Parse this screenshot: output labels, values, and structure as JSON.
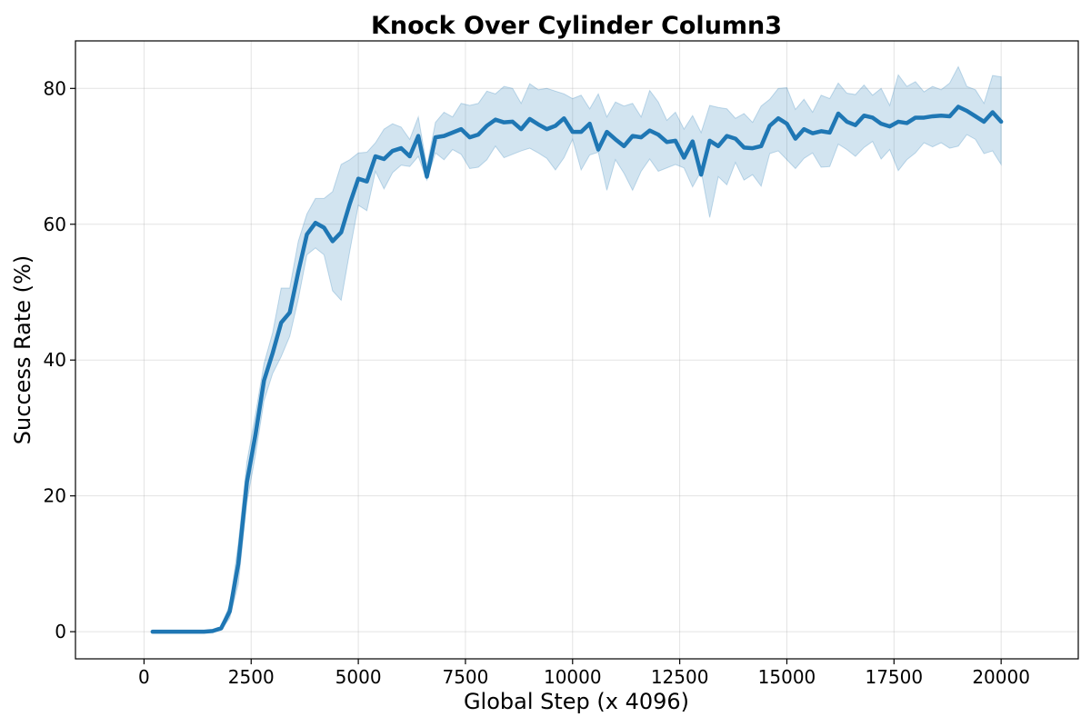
{
  "chart_data": {
    "type": "line",
    "title": "Knock Over Cylinder Column3",
    "xlabel": "Global Step (x 4096)",
    "ylabel": "Success Rate (%)",
    "xlim": [
      -1600,
      21800
    ],
    "ylim": [
      -4,
      87
    ],
    "xticks": [
      0,
      2500,
      5000,
      7500,
      10000,
      12500,
      15000,
      17500,
      20000
    ],
    "yticks": [
      0,
      20,
      40,
      60,
      80
    ],
    "grid": true,
    "colors": {
      "line": "#1f77b4",
      "band": "#1f77b4"
    },
    "series": [
      {
        "x": [
          200,
          400,
          600,
          800,
          1000,
          1200,
          1400,
          1600,
          1800,
          2000,
          2200,
          2400,
          2600,
          2800,
          3000,
          3200,
          3400,
          3600,
          3800,
          4000,
          4200,
          4400,
          4600,
          4800,
          5000,
          5200,
          5400,
          5600,
          5800,
          6000,
          6200,
          6400,
          6600,
          6800,
          7000,
          7200,
          7400,
          7600,
          7800,
          8000,
          8200,
          8400,
          8600,
          8800,
          9000,
          9200,
          9400,
          9600,
          9800,
          10000,
          10200,
          10400,
          10600,
          10800,
          11000,
          11200,
          11400,
          11600,
          11800,
          12000,
          12200,
          12400,
          12600,
          12800,
          13000,
          13200,
          13400,
          13600,
          13800,
          14000,
          14200,
          14400,
          14600,
          14800,
          15000,
          15200,
          15400,
          15600,
          15800,
          16000,
          16200,
          16400,
          16600,
          16800,
          17000,
          17200,
          17400,
          17600,
          17800,
          18000,
          18200,
          18400,
          18600,
          18800,
          19000,
          19200,
          19400,
          19600,
          19800,
          20000
        ],
        "y": [
          0,
          0,
          0,
          0,
          0,
          0,
          0,
          0.1,
          0.5,
          3,
          10,
          22,
          29,
          37,
          41,
          45.5,
          47,
          53,
          58.5,
          60.2,
          59.5,
          57.5,
          58.8,
          63,
          66.7,
          66.3,
          70,
          69.6,
          70.8,
          71.2,
          70,
          73,
          67,
          72.8,
          73,
          73.5,
          74,
          72.8,
          73.2,
          74.5,
          75.4,
          75,
          75.1,
          74,
          75.5,
          74.7,
          74,
          74.5,
          75.6,
          73.6,
          73.6,
          74.8,
          71,
          73.6,
          72.5,
          71.5,
          73,
          72.8,
          73.8,
          73.2,
          72.1,
          72.3,
          69.8,
          72.2,
          67.3,
          72.3,
          71.5,
          73,
          72.6,
          71.3,
          71.2,
          71.5,
          74.5,
          75.6,
          74.8,
          72.6,
          74,
          73.4,
          73.7,
          73.5,
          76.3,
          75.1,
          74.6,
          76,
          75.7,
          74.8,
          74.4,
          75.1,
          74.9,
          75.7,
          75.7,
          75.9,
          76,
          75.9,
          77.3,
          76.7,
          75.9,
          75.1,
          76.5,
          75.1
        ],
        "lower": [
          0,
          0,
          0,
          0,
          0,
          0,
          0,
          0,
          0.2,
          2,
          7,
          19,
          26,
          34,
          38,
          40.5,
          43.5,
          49,
          55.5,
          56.5,
          55.5,
          50.2,
          48.8,
          56,
          62.8,
          62,
          67.8,
          65.2,
          67.6,
          68.7,
          68.5,
          70,
          66.5,
          70.5,
          69.5,
          71,
          70.3,
          68.2,
          68.4,
          69.5,
          71.5,
          69.8,
          70.3,
          70.8,
          71.2,
          70.5,
          69.7,
          68,
          69.8,
          72.5,
          68,
          70.2,
          70.6,
          65,
          69.5,
          67.5,
          65,
          67.8,
          69.6,
          67.8,
          68.3,
          68.8,
          68.3,
          65.5,
          67.8,
          61,
          67,
          65.8,
          69.1,
          66.5,
          67.3,
          65.6,
          70.4,
          70.8,
          69.5,
          68.2,
          69.7,
          70.5,
          68.4,
          68.5,
          71.8,
          71,
          70,
          71.3,
          72.2,
          69.6,
          71,
          67.9,
          69.5,
          70.5,
          72,
          71.4,
          72,
          71.2,
          71.5,
          73.2,
          72.5,
          70.4,
          70.8,
          68.8
        ],
        "upper": [
          0,
          0,
          0,
          0,
          0,
          0,
          0,
          0.3,
          0.8,
          4,
          13,
          25,
          32,
          39.5,
          44,
          50.6,
          50.6,
          57.5,
          61.5,
          63.8,
          63.8,
          64.8,
          68.8,
          69.5,
          70.5,
          70.6,
          72,
          74,
          74.8,
          74.3,
          72.5,
          75.8,
          68.5,
          75,
          76.5,
          75.8,
          77.8,
          77.5,
          77.8,
          79.6,
          79.2,
          80.3,
          80,
          77.8,
          80.7,
          79.8,
          80,
          79.6,
          79.2,
          78.5,
          79,
          77,
          79.2,
          75.8,
          78,
          77.4,
          77.8,
          75.8,
          79.7,
          78,
          75.3,
          76.5,
          74,
          76,
          73.5,
          77.5,
          77.2,
          77,
          75.6,
          76.3,
          75,
          77.4,
          78.4,
          80,
          80.1,
          76.9,
          78.4,
          76.5,
          79,
          78.5,
          80.8,
          79.3,
          79.1,
          80.5,
          79,
          80,
          77.5,
          82,
          80.3,
          81,
          79.5,
          80.3,
          79.8,
          80.8,
          83.2,
          80.3,
          79.8,
          77.8,
          81.9,
          81.7
        ]
      }
    ]
  }
}
